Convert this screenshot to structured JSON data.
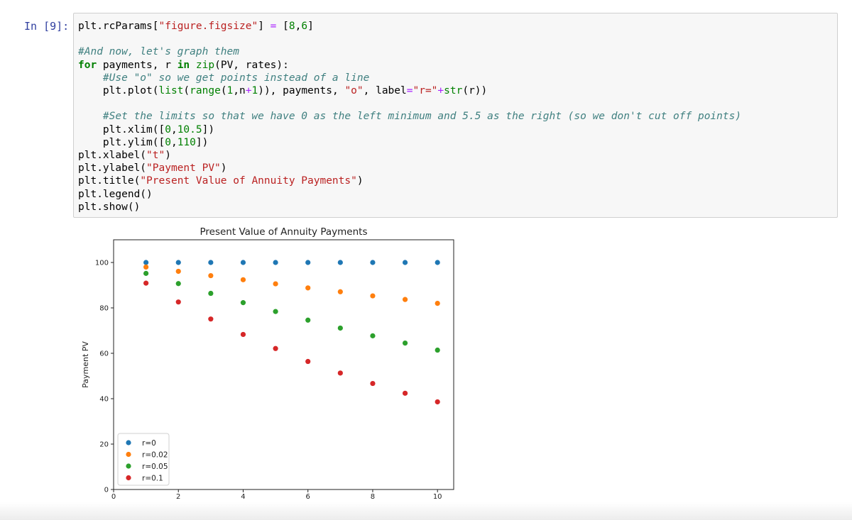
{
  "cell": {
    "prompt": "In [9]:",
    "code_lines": [
      "plt.rcParams[\"figure.figsize\"] = [8,6]",
      "",
      "#And now, let's graph them",
      "for payments, r in zip(PV, rates):",
      "    #Use \"o\" so we get points instead of a line",
      "    plt.plot(list(range(1,n+1)), payments, \"o\", label=\"r=\"+str(r))",
      "",
      "    #Set the limits so that we have 0 as the left minimum and 5.5 as the right (so we don't cut off points)",
      "    plt.xlim([0,10.5])",
      "    plt.ylim([0,110])",
      "plt.xlabel(\"t\")",
      "plt.ylabel(\"Payment PV\")",
      "plt.title(\"Present Value of Annuity Payments\")",
      "plt.legend()",
      "plt.show()"
    ]
  },
  "chart_data": {
    "type": "scatter",
    "title": "Present Value of Annuity Payments",
    "xlabel": "t",
    "ylabel": "Payment PV",
    "xlim": [
      0,
      10.5
    ],
    "ylim": [
      0,
      110
    ],
    "xticks": [
      0,
      2,
      4,
      6,
      8,
      10
    ],
    "yticks": [
      0,
      20,
      40,
      60,
      80,
      100
    ],
    "grid": false,
    "legend_position": "lower-left",
    "x": [
      1,
      2,
      3,
      4,
      5,
      6,
      7,
      8,
      9,
      10
    ],
    "series": [
      {
        "name": "r=0",
        "color": "#1f77b4",
        "values": [
          100,
          100,
          100,
          100,
          100,
          100,
          100,
          100,
          100,
          100
        ]
      },
      {
        "name": "r=0.02",
        "color": "#ff7f0e",
        "values": [
          98.0,
          96.1,
          94.2,
          92.4,
          90.6,
          88.8,
          87.1,
          85.3,
          83.7,
          82.0
        ]
      },
      {
        "name": "r=0.05",
        "color": "#2ca02c",
        "values": [
          95.2,
          90.7,
          86.4,
          82.3,
          78.4,
          74.6,
          71.1,
          67.7,
          64.5,
          61.4
        ]
      },
      {
        "name": "r=0.1",
        "color": "#d62728",
        "values": [
          90.9,
          82.6,
          75.1,
          68.3,
          62.1,
          56.4,
          51.3,
          46.7,
          42.4,
          38.6
        ]
      }
    ]
  }
}
